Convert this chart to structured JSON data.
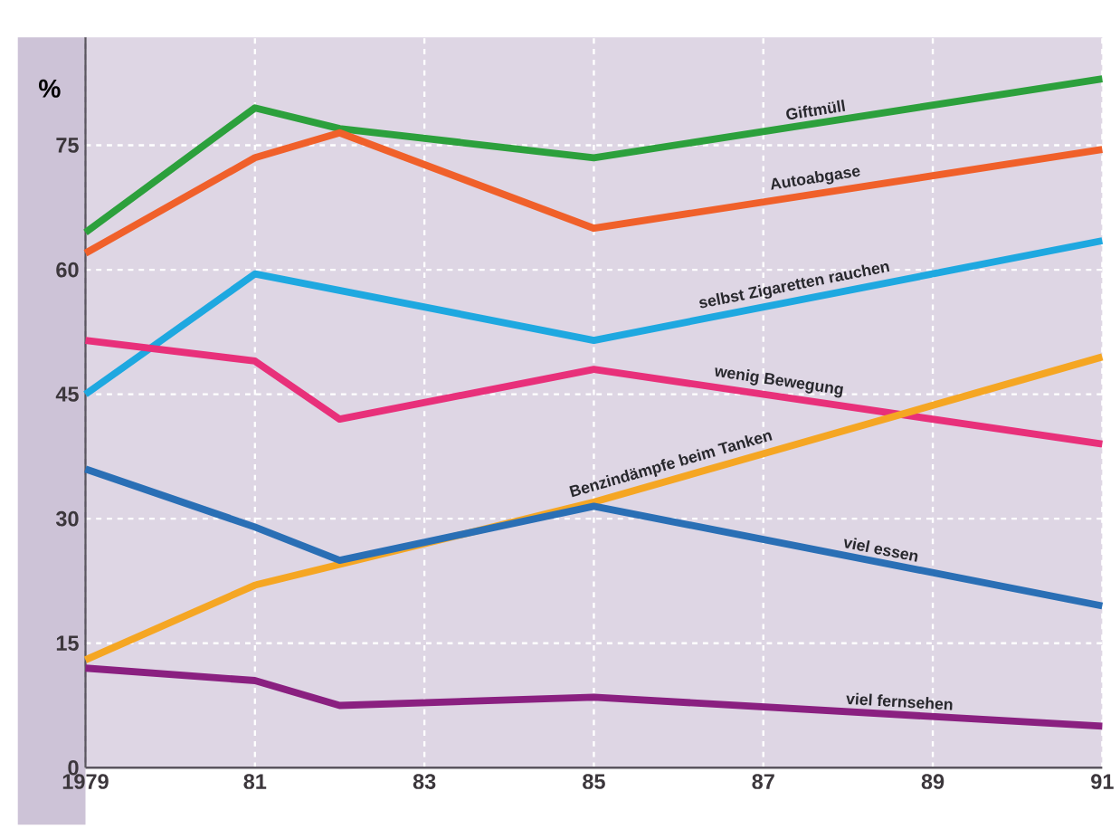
{
  "chart_data": {
    "type": "line",
    "ylabel": "%",
    "x": [
      1979,
      1981,
      1982,
      1985,
      1991
    ],
    "series": [
      {
        "name": "Giftmüll",
        "color": "#2ca03c",
        "values": [
          64.5,
          79.5,
          77,
          73.5,
          83
        ]
      },
      {
        "name": "Autoabgase",
        "color": "#f0602a",
        "values": [
          62,
          73.5,
          76.5,
          65,
          74.5
        ]
      },
      {
        "name": "selbst Zigaretten rauchen",
        "color": "#1ea8e0",
        "values": [
          45,
          59.5,
          null,
          51.5,
          63.5
        ]
      },
      {
        "name": "wenig Bewegung",
        "color": "#e8307a",
        "values": [
          51.5,
          49,
          42,
          48,
          39
        ]
      },
      {
        "name": "Benzindämpfe beim Tanken",
        "color": "#f5a623",
        "values": [
          13,
          22,
          null,
          32,
          49.5
        ]
      },
      {
        "name": "viel essen",
        "color": "#2a6fb5",
        "values": [
          36,
          29,
          25,
          31.5,
          19.5
        ]
      },
      {
        "name": "viel fernsehen",
        "color": "#8a2080",
        "values": [
          12,
          10.5,
          7.5,
          8.5,
          5
        ]
      }
    ],
    "xlim": [
      1979,
      1991
    ],
    "ylim": [
      0,
      88
    ],
    "xticks": [
      {
        "value": 1979,
        "label": "1979"
      },
      {
        "value": 1981,
        "label": "81"
      },
      {
        "value": 1983,
        "label": "83"
      },
      {
        "value": 1985,
        "label": "85"
      },
      {
        "value": 1987,
        "label": "87"
      },
      {
        "value": 1989,
        "label": "89"
      },
      {
        "value": 1991,
        "label": "91"
      }
    ],
    "yticks": [
      0,
      15,
      30,
      45,
      60,
      75
    ],
    "grid": true,
    "line_style": "solid",
    "marker": "none"
  }
}
